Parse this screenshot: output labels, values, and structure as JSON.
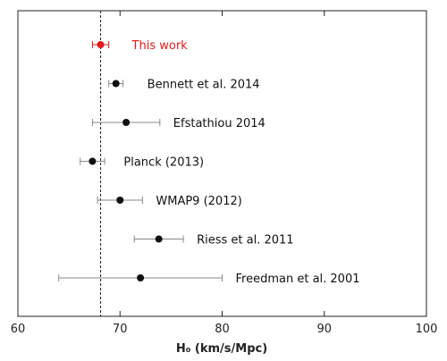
{
  "chart_data": {
    "type": "scatter",
    "title": "",
    "xlabel": "H₀ (km/s/Mpc)",
    "ylabel": "",
    "xlim": [
      60,
      100
    ],
    "xticks": [
      60,
      70,
      80,
      90,
      100
    ],
    "grid": false,
    "reference_line_x": 68.1,
    "colors": {
      "highlight": "#e41a1c",
      "default": "#111111",
      "errorbar_default": "#888888"
    },
    "points": [
      {
        "label": "This work",
        "x": 68.1,
        "xerr_low": 0.8,
        "xerr_high": 0.8,
        "highlight": true
      },
      {
        "label": "Bennett et al. 2014",
        "x": 69.6,
        "xerr_low": 0.7,
        "xerr_high": 0.7,
        "highlight": false
      },
      {
        "label": "Efstathiou 2014",
        "x": 70.6,
        "xerr_low": 3.3,
        "xerr_high": 3.3,
        "highlight": false
      },
      {
        "label": "Planck (2013)",
        "x": 67.3,
        "xerr_low": 1.2,
        "xerr_high": 1.2,
        "highlight": false
      },
      {
        "label": "WMAP9 (2012)",
        "x": 70.0,
        "xerr_low": 2.2,
        "xerr_high": 2.2,
        "highlight": false
      },
      {
        "label": "Riess et al. 2011",
        "x": 73.8,
        "xerr_low": 2.4,
        "xerr_high": 2.4,
        "highlight": false
      },
      {
        "label": "Freedman et al. 2001",
        "x": 72.0,
        "xerr_low": 8.0,
        "xerr_high": 8.0,
        "highlight": false
      }
    ]
  }
}
